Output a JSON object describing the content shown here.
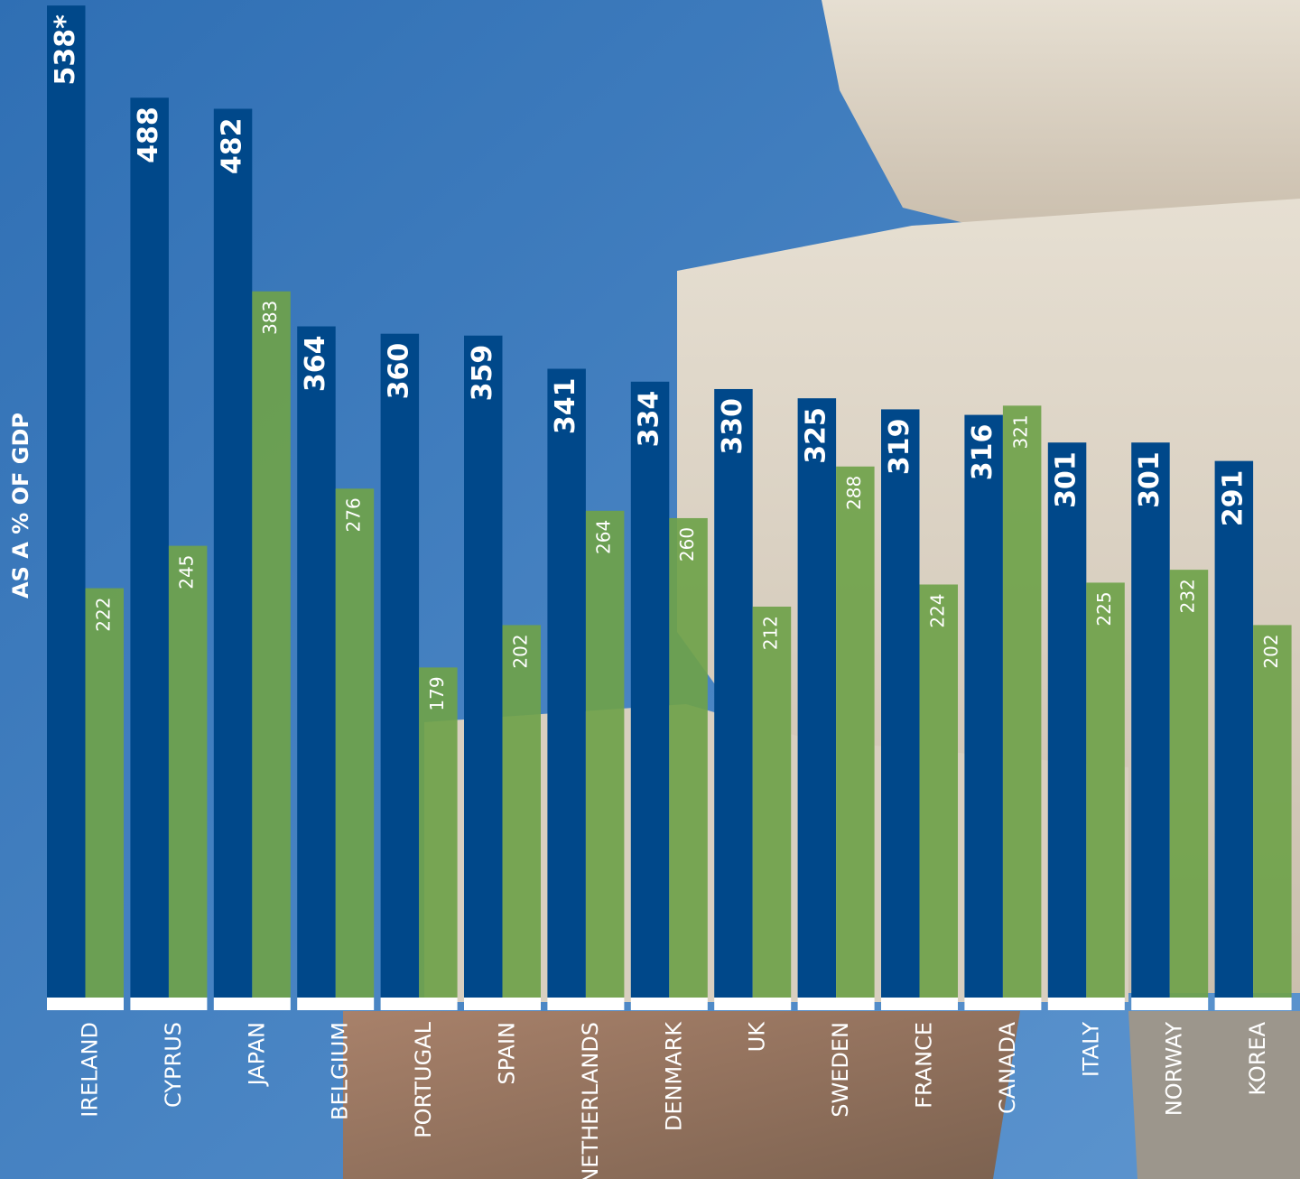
{
  "chart_data": {
    "type": "bar",
    "y_label": "AS A % OF GDP",
    "categories": [
      "IRELAND",
      "CYPRUS",
      "JAPAN",
      "BELGIUM",
      "PORTUGAL",
      "SPAIN",
      "NETHERLANDS",
      "DENMARK",
      "UK",
      "SWEDEN",
      "FRANCE",
      "CANADA",
      "ITALY",
      "NORWAY",
      "KOREA"
    ],
    "series": [
      {
        "color": "#00488a",
        "values": [
          538,
          488,
          482,
          364,
          360,
          359,
          341,
          334,
          330,
          325,
          319,
          316,
          301,
          301,
          291
        ],
        "value_labels": [
          "538*",
          "488",
          "482",
          "364",
          "360",
          "359",
          "341",
          "334",
          "330",
          "325",
          "319",
          "316",
          "301",
          "301",
          "291"
        ]
      },
      {
        "color": "#6fa24a",
        "values": [
          222,
          245,
          383,
          276,
          179,
          202,
          264,
          260,
          212,
          288,
          224,
          321,
          225,
          232,
          202
        ]
      }
    ],
    "ylim": [
      0,
      541
    ]
  }
}
